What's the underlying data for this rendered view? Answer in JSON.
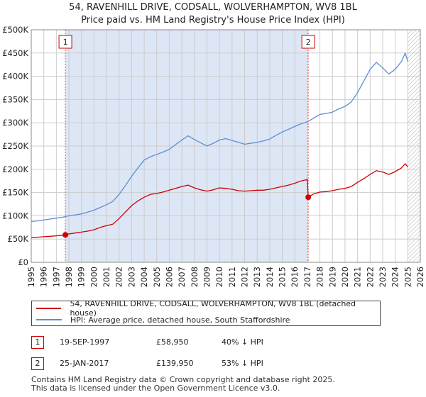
{
  "title": {
    "line1": "54, RAVENHILL DRIVE, CODSALL, WOLVERHAMPTON, WV8 1BL",
    "line2": "Price paid vs. HM Land Registry's House Price Index (HPI)"
  },
  "colors": {
    "property": "#cc0000",
    "hpi": "#5b8fd0",
    "shade": "#dde6f5",
    "marker_line": "#e05a5a"
  },
  "legend": {
    "property_label": "54, RAVENHILL DRIVE, CODSALL, WOLVERHAMPTON, WV8 1BL (detached house)",
    "hpi_label": "HPI: Average price, detached house, South Staffordshire"
  },
  "sales": [
    {
      "num": "1",
      "date": "19-SEP-1997",
      "price": "£58,950",
      "hpi": "40% ↓ HPI"
    },
    {
      "num": "2",
      "date": "25-JAN-2017",
      "price": "£139,950",
      "hpi": "53% ↓ HPI"
    }
  ],
  "footer": {
    "line1": "Contains HM Land Registry data © Crown copyright and database right 2025.",
    "line2": "This data is licensed under the Open Government Licence v3.0."
  },
  "chart_data": {
    "type": "line",
    "xlim": [
      1995,
      2026
    ],
    "ylim": [
      0,
      500000
    ],
    "yticks": [
      0,
      50000,
      100000,
      150000,
      200000,
      250000,
      300000,
      350000,
      400000,
      450000,
      500000
    ],
    "ytick_labels": [
      "£0",
      "£50K",
      "£100K",
      "£150K",
      "£200K",
      "£250K",
      "£300K",
      "£350K",
      "£400K",
      "£450K",
      "£500K"
    ],
    "xticks": [
      "1995",
      "1996",
      "1997",
      "1998",
      "1999",
      "2000",
      "2001",
      "2002",
      "2003",
      "2004",
      "2005",
      "2006",
      "2007",
      "2008",
      "2009",
      "2010",
      "2011",
      "2012",
      "2013",
      "2014",
      "2015",
      "2016",
      "2017",
      "2018",
      "2019",
      "2020",
      "2021",
      "2022",
      "2023",
      "2024",
      "2025",
      "2026"
    ],
    "shaded_range": [
      1997.72,
      2017.07
    ],
    "future_hatch_from": 2025.0,
    "sale_markers": [
      {
        "label": "1",
        "x": 1997.72,
        "y": 58950
      },
      {
        "label": "2",
        "x": 2017.07,
        "y": 139950
      }
    ],
    "series": [
      {
        "name": "54, RAVENHILL DRIVE, CODSALL, WOLVERHAMPTON, WV8 1BL (detached house)",
        "x": [
          1995.0,
          1995.5,
          1996.0,
          1996.5,
          1997.0,
          1997.5,
          1997.72,
          1998.0,
          1998.5,
          1999.0,
          1999.5,
          2000.0,
          2000.5,
          2001.0,
          2001.5,
          2002.0,
          2002.5,
          2003.0,
          2003.5,
          2004.0,
          2004.5,
          2005.0,
          2005.5,
          2006.0,
          2006.5,
          2007.0,
          2007.5,
          2008.0,
          2008.5,
          2009.0,
          2009.5,
          2010.0,
          2010.5,
          2011.0,
          2011.5,
          2012.0,
          2012.5,
          2013.0,
          2013.5,
          2014.0,
          2014.5,
          2015.0,
          2015.5,
          2016.0,
          2016.5,
          2017.0,
          2017.07,
          2017.5,
          2018.0,
          2018.5,
          2019.0,
          2019.5,
          2020.0,
          2020.5,
          2021.0,
          2021.5,
          2022.0,
          2022.5,
          2023.0,
          2023.5,
          2024.0,
          2024.5,
          2024.8,
          2025.0
        ],
        "y": [
          53000,
          54000,
          55000,
          56000,
          57000,
          58000,
          58950,
          61000,
          63000,
          65000,
          67000,
          70000,
          75000,
          79000,
          82000,
          94000,
          108000,
          122000,
          132000,
          140000,
          146000,
          148000,
          151000,
          155000,
          159000,
          163000,
          166000,
          160000,
          156000,
          153000,
          156000,
          160000,
          159000,
          157000,
          154000,
          153000,
          154000,
          155000,
          155000,
          157000,
          160000,
          163000,
          166000,
          170000,
          175000,
          178000,
          139950,
          147000,
          151000,
          152000,
          154000,
          157000,
          159000,
          163000,
          172000,
          180000,
          189000,
          197000,
          194000,
          189000,
          195000,
          203000,
          212000,
          205000
        ]
      },
      {
        "name": "HPI: Average price, detached house, South Staffordshire",
        "x": [
          1995.0,
          1995.5,
          1996.0,
          1996.5,
          1997.0,
          1997.5,
          1998.0,
          1998.5,
          1999.0,
          1999.5,
          2000.0,
          2000.5,
          2001.0,
          2001.5,
          2002.0,
          2002.5,
          2003.0,
          2003.5,
          2004.0,
          2004.5,
          2005.0,
          2005.5,
          2006.0,
          2006.5,
          2007.0,
          2007.5,
          2008.0,
          2008.5,
          2009.0,
          2009.5,
          2010.0,
          2010.5,
          2011.0,
          2011.5,
          2012.0,
          2012.5,
          2013.0,
          2013.5,
          2014.0,
          2014.5,
          2015.0,
          2015.5,
          2016.0,
          2016.5,
          2017.0,
          2017.5,
          2018.0,
          2018.5,
          2019.0,
          2019.5,
          2020.0,
          2020.5,
          2021.0,
          2021.5,
          2022.0,
          2022.5,
          2023.0,
          2023.5,
          2024.0,
          2024.5,
          2024.8,
          2025.0
        ],
        "y": [
          88000,
          89000,
          91000,
          93000,
          95000,
          97000,
          100000,
          102000,
          104000,
          108000,
          112000,
          118000,
          124000,
          131000,
          146000,
          165000,
          185000,
          203000,
          220000,
          227000,
          232000,
          237000,
          243000,
          253000,
          263000,
          272000,
          264000,
          257000,
          250000,
          256000,
          263000,
          266000,
          262000,
          258000,
          254000,
          256000,
          258000,
          261000,
          265000,
          273000,
          280000,
          286000,
          292000,
          298000,
          302000,
          310000,
          318000,
          320000,
          323000,
          330000,
          335000,
          345000,
          365000,
          390000,
          415000,
          430000,
          418000,
          405000,
          415000,
          432000,
          450000,
          432000
        ]
      }
    ]
  }
}
